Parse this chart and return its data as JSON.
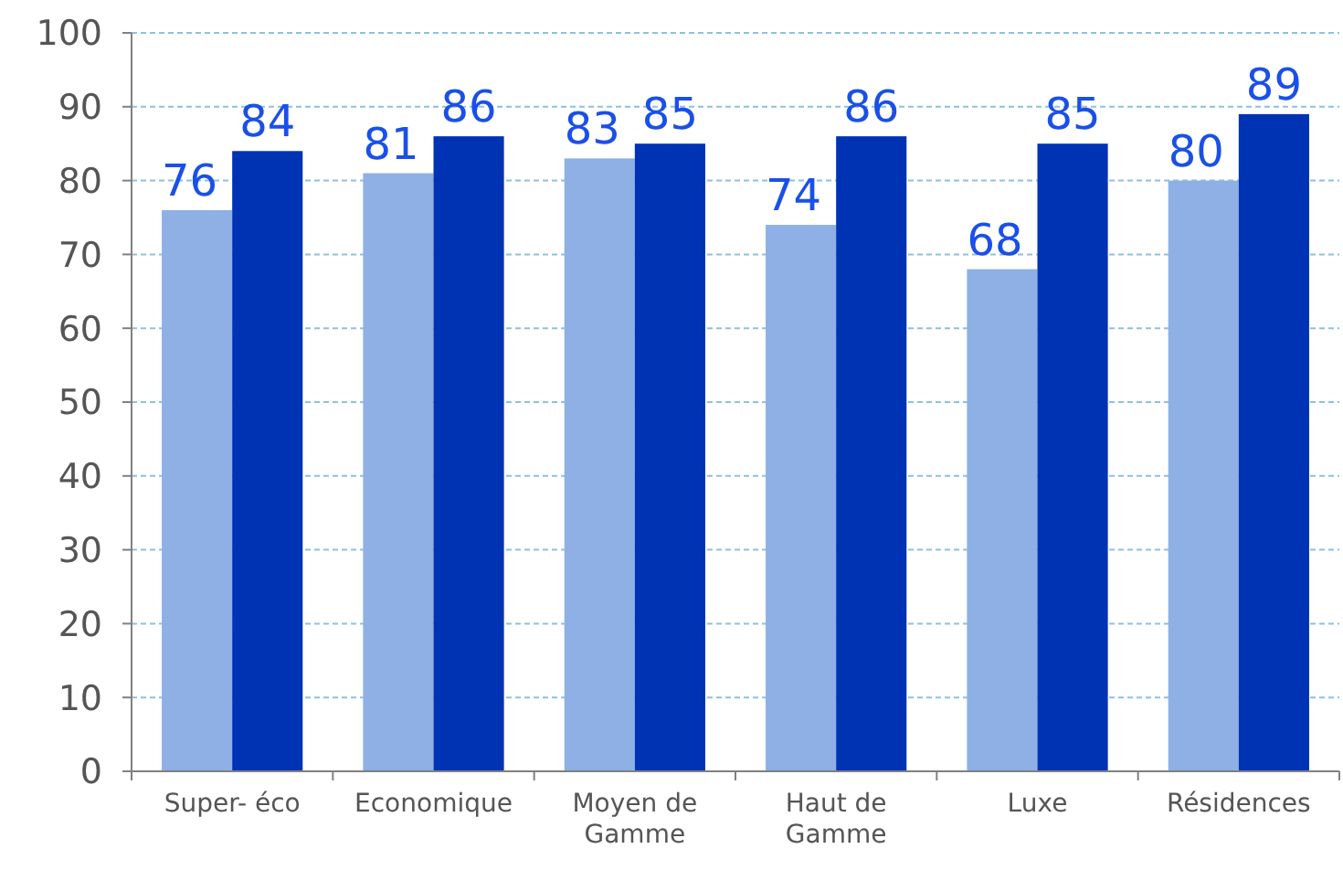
{
  "chart_data": {
    "type": "bar",
    "categories": [
      "Super- éco",
      "Economique",
      "Moyen de Gamme",
      "Haut de Gamme",
      "Luxe",
      "Résidences"
    ],
    "series": [
      {
        "color": "#8eb0e4",
        "values": [
          76,
          81,
          83,
          74,
          68,
          80
        ]
      },
      {
        "color": "#0033b4",
        "values": [
          84,
          86,
          85,
          86,
          85,
          89
        ]
      }
    ],
    "ylim": [
      0,
      100
    ],
    "yticks": [
      0,
      10,
      20,
      30,
      40,
      50,
      60,
      70,
      80,
      90,
      100
    ],
    "grid": "y",
    "data_labels": true
  }
}
